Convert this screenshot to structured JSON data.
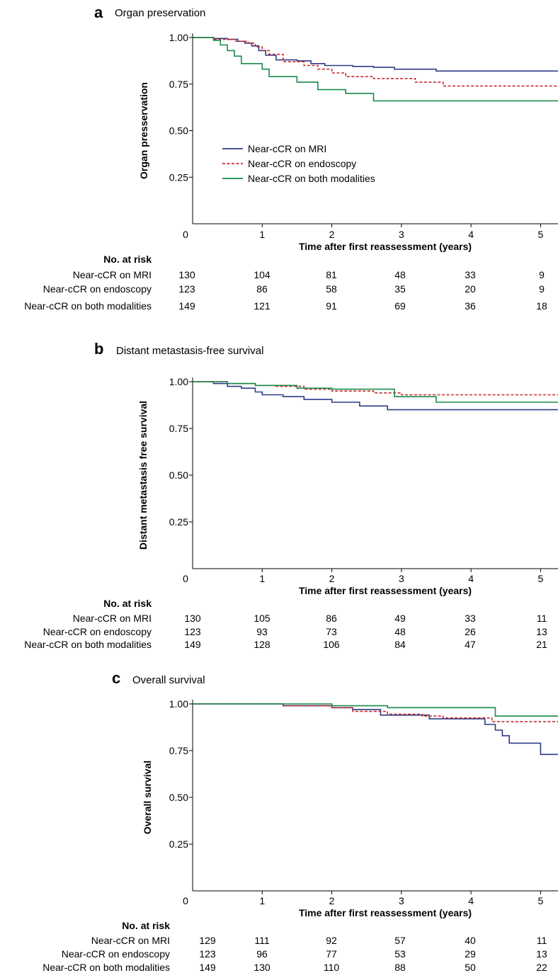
{
  "chart_data": [
    {
      "type": "line",
      "panel": "a",
      "title": "Organ preservation",
      "xlabel": "Time after first reassessment (years)",
      "ylabel": "Organ presservation",
      "xlim": [
        0,
        5.25
      ],
      "ylim": [
        0,
        1
      ],
      "x_ticks": [
        "0",
        "1",
        "2",
        "3",
        "4",
        "5"
      ],
      "y_ticks": [
        "1.00",
        "0.75",
        "0.50",
        "0.25"
      ],
      "legend": {
        "position": "center-left",
        "entries": [
          "Near-cCR on MRI",
          "Near-cCR on endoscopy",
          "Near-cCR on both modalities"
        ]
      },
      "series": [
        {
          "name": "Near-cCR on MRI",
          "color": "#2e3a87",
          "style": "solid",
          "x": [
            0,
            0.3,
            0.5,
            0.65,
            0.75,
            0.85,
            0.95,
            1.05,
            1.2,
            1.5,
            1.7,
            1.9,
            2.3,
            2.6,
            2.9,
            3.5,
            5.25
          ],
          "y": [
            1.0,
            0.995,
            0.99,
            0.98,
            0.97,
            0.955,
            0.93,
            0.905,
            0.88,
            0.875,
            0.86,
            0.85,
            0.845,
            0.84,
            0.83,
            0.82,
            0.82
          ]
        },
        {
          "name": "Near-cCR on endoscopy",
          "color": "#cc2a2a",
          "style": "dashed",
          "x": [
            0,
            0.3,
            0.6,
            0.8,
            0.9,
            1.0,
            1.1,
            1.3,
            1.6,
            1.8,
            2.0,
            2.2,
            2.6,
            3.2,
            3.6,
            5.25
          ],
          "y": [
            1.0,
            0.99,
            0.98,
            0.97,
            0.95,
            0.93,
            0.91,
            0.87,
            0.85,
            0.83,
            0.81,
            0.79,
            0.78,
            0.76,
            0.74,
            0.74
          ]
        },
        {
          "name": "Near-cCR on both modalities",
          "color": "#1a8a4a",
          "style": "solid",
          "x": [
            0,
            0.3,
            0.4,
            0.5,
            0.6,
            0.7,
            1.0,
            1.1,
            1.5,
            1.8,
            2.2,
            2.6,
            5.25
          ],
          "y": [
            1.0,
            0.985,
            0.96,
            0.93,
            0.9,
            0.86,
            0.83,
            0.79,
            0.76,
            0.72,
            0.7,
            0.66,
            0.66
          ]
        }
      ],
      "risk_table": {
        "header": "No. at risk",
        "rows": [
          {
            "label": "Near-cCR on MRI",
            "values": [
              "130",
              "104",
              "81",
              "48",
              "33",
              "9"
            ]
          },
          {
            "label": "Near-cCR on endoscopy",
            "values": [
              "123",
              "86",
              "58",
              "35",
              "20",
              "9"
            ]
          },
          {
            "label": "Near-cCR on both modalities",
            "values": [
              "149",
              "121",
              "91",
              "69",
              "36",
              "18"
            ]
          }
        ]
      }
    },
    {
      "type": "line",
      "panel": "b",
      "title": "Distant metastasis-free survival",
      "xlabel": "Time after first reassessment (years)",
      "ylabel": "Distant metastasis free survival",
      "xlim": [
        0,
        5.25
      ],
      "ylim": [
        0,
        1
      ],
      "x_ticks": [
        "0",
        "1",
        "2",
        "3",
        "4",
        "5"
      ],
      "y_ticks": [
        "1.00",
        "0.75",
        "0.50",
        "0.25"
      ],
      "series": [
        {
          "name": "Near-cCR on MRI",
          "color": "#2e3a87",
          "style": "solid",
          "x": [
            0,
            0.3,
            0.5,
            0.7,
            0.9,
            1.0,
            1.3,
            1.6,
            2.0,
            2.4,
            2.8,
            3.5,
            5.25
          ],
          "y": [
            1.0,
            0.99,
            0.975,
            0.965,
            0.945,
            0.93,
            0.92,
            0.905,
            0.89,
            0.87,
            0.85,
            0.85,
            0.85
          ]
        },
        {
          "name": "Near-cCR on endoscopy",
          "color": "#cc2a2a",
          "style": "dashed",
          "x": [
            0,
            0.5,
            0.9,
            1.2,
            1.6,
            2.0,
            2.6,
            3.0,
            5.25
          ],
          "y": [
            1.0,
            0.99,
            0.98,
            0.975,
            0.96,
            0.95,
            0.94,
            0.93,
            0.93
          ]
        },
        {
          "name": "Near-cCR on both modalities",
          "color": "#1a8a4a",
          "style": "solid",
          "x": [
            0,
            0.5,
            0.9,
            1.5,
            2.0,
            2.9,
            3.5,
            5.25
          ],
          "y": [
            1.0,
            0.99,
            0.98,
            0.965,
            0.96,
            0.92,
            0.89,
            0.89
          ]
        }
      ],
      "risk_table": {
        "header": "No. at risk",
        "rows": [
          {
            "label": "Near-cCR on MRI",
            "values": [
              "130",
              "105",
              "86",
              "49",
              "33",
              "11"
            ]
          },
          {
            "label": "Near-cCR on endoscopy",
            "values": [
              "123",
              "93",
              "73",
              "48",
              "26",
              "13"
            ]
          },
          {
            "label": "Near-cCR on both modalities",
            "values": [
              "149",
              "128",
              "106",
              "84",
              "47",
              "21"
            ]
          }
        ]
      }
    },
    {
      "type": "line",
      "panel": "c",
      "title": "Overall survival",
      "xlabel": "Time after first reassessment (years)",
      "ylabel": "Overall survival",
      "xlim": [
        0,
        5.25
      ],
      "ylim": [
        0,
        1
      ],
      "x_ticks": [
        "0",
        "1",
        "2",
        "3",
        "4",
        "5"
      ],
      "y_ticks": [
        "1.00",
        "0.75",
        "0.50",
        "0.25"
      ],
      "series": [
        {
          "name": "Near-cCR on MRI",
          "color": "#2e3a87",
          "style": "solid",
          "x": [
            0,
            1.3,
            2.0,
            2.3,
            2.7,
            3.4,
            4.2,
            4.35,
            4.45,
            4.55,
            4.75,
            5.0,
            5.25
          ],
          "y": [
            1.0,
            0.99,
            0.98,
            0.97,
            0.94,
            0.92,
            0.89,
            0.86,
            0.83,
            0.79,
            0.79,
            0.73,
            0.73
          ]
        },
        {
          "name": "Near-cCR on endoscopy",
          "color": "#cc2a2a",
          "style": "dashed",
          "x": [
            0,
            1.3,
            2.0,
            2.3,
            2.8,
            3.3,
            3.6,
            4.3,
            5.25
          ],
          "y": [
            1.0,
            0.99,
            0.98,
            0.96,
            0.945,
            0.935,
            0.925,
            0.905,
            0.905
          ]
        },
        {
          "name": "Near-cCR on both modalities",
          "color": "#1a8a4a",
          "style": "solid",
          "x": [
            0,
            2.0,
            2.8,
            3.6,
            4.35,
            5.25
          ],
          "y": [
            1.0,
            0.99,
            0.98,
            0.98,
            0.935,
            0.935
          ]
        }
      ],
      "risk_table": {
        "header": "No. at risk",
        "rows": [
          {
            "label": "Near-cCR on MRI",
            "values": [
              "129",
              "111",
              "92",
              "57",
              "40",
              "11"
            ]
          },
          {
            "label": "Near-cCR on endoscopy",
            "values": [
              "123",
              "96",
              "77",
              "53",
              "29",
              "13"
            ]
          },
          {
            "label": "Near-cCR on both modalities",
            "values": [
              "149",
              "130",
              "110",
              "88",
              "50",
              "22"
            ]
          }
        ]
      }
    }
  ]
}
